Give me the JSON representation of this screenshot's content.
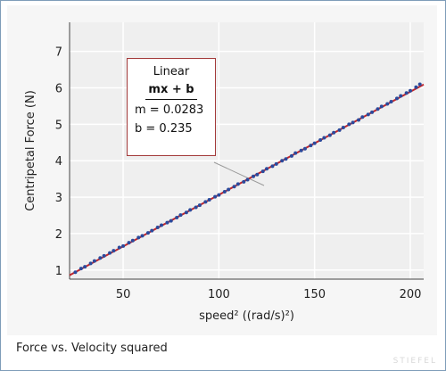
{
  "caption": "Force vs. Velocity squared",
  "watermark": "STIEFEL",
  "fit_box": {
    "title": "Linear",
    "formula": "mx + b",
    "m_text": "m = 0.0283",
    "b_text": "b  = 0.235"
  },
  "colors": {
    "fit_line": "#c0272d",
    "data_points": "#2b4a9c",
    "grid": "#ffffff",
    "plot_bg": "#efefef"
  },
  "chart_data": {
    "type": "scatter",
    "xlabel": "speed² ((rad/s)²)",
    "ylabel": "Centripetal Force (N)",
    "xlim": [
      22,
      207
    ],
    "ylim": [
      0.75,
      7.8
    ],
    "x_ticks": [
      50,
      100,
      150,
      200
    ],
    "y_ticks": [
      1,
      2,
      3,
      4,
      5,
      6,
      7
    ],
    "grid": true,
    "fit": {
      "kind": "linear",
      "m": 0.0283,
      "b": 0.235
    },
    "series": [
      {
        "x": [
          25,
          28,
          30,
          33,
          35,
          38,
          40,
          43,
          45,
          48,
          50,
          53,
          55,
          58,
          60,
          63,
          65,
          68,
          70,
          73,
          75,
          78,
          80,
          83,
          85,
          88,
          90,
          93,
          95,
          98,
          100,
          103,
          105,
          108,
          110,
          113,
          115,
          118,
          120,
          123,
          125,
          128,
          130,
          133,
          135,
          138,
          140,
          143,
          145,
          148,
          150,
          153,
          155,
          158,
          160,
          163,
          165,
          168,
          170,
          173,
          175,
          178,
          180,
          183,
          185,
          188,
          190,
          193,
          195,
          198,
          200,
          203,
          205
        ],
        "y": [
          0.94,
          1.04,
          1.09,
          1.18,
          1.25,
          1.33,
          1.39,
          1.47,
          1.53,
          1.62,
          1.66,
          1.75,
          1.81,
          1.89,
          1.94,
          2.02,
          2.08,
          2.17,
          2.23,
          2.3,
          2.35,
          2.44,
          2.51,
          2.58,
          2.65,
          2.72,
          2.78,
          2.87,
          2.93,
          3.01,
          3.06,
          3.15,
          3.21,
          3.29,
          3.36,
          3.42,
          3.48,
          3.57,
          3.62,
          3.71,
          3.78,
          3.85,
          3.91,
          4.0,
          4.05,
          4.13,
          4.21,
          4.28,
          4.33,
          4.42,
          4.48,
          4.57,
          4.63,
          4.7,
          4.77,
          4.84,
          4.91,
          5.0,
          5.05,
          5.12,
          5.2,
          5.27,
          5.33,
          5.42,
          5.49,
          5.56,
          5.62,
          5.71,
          5.78,
          5.86,
          5.92,
          6.02,
          6.1
        ]
      }
    ]
  }
}
